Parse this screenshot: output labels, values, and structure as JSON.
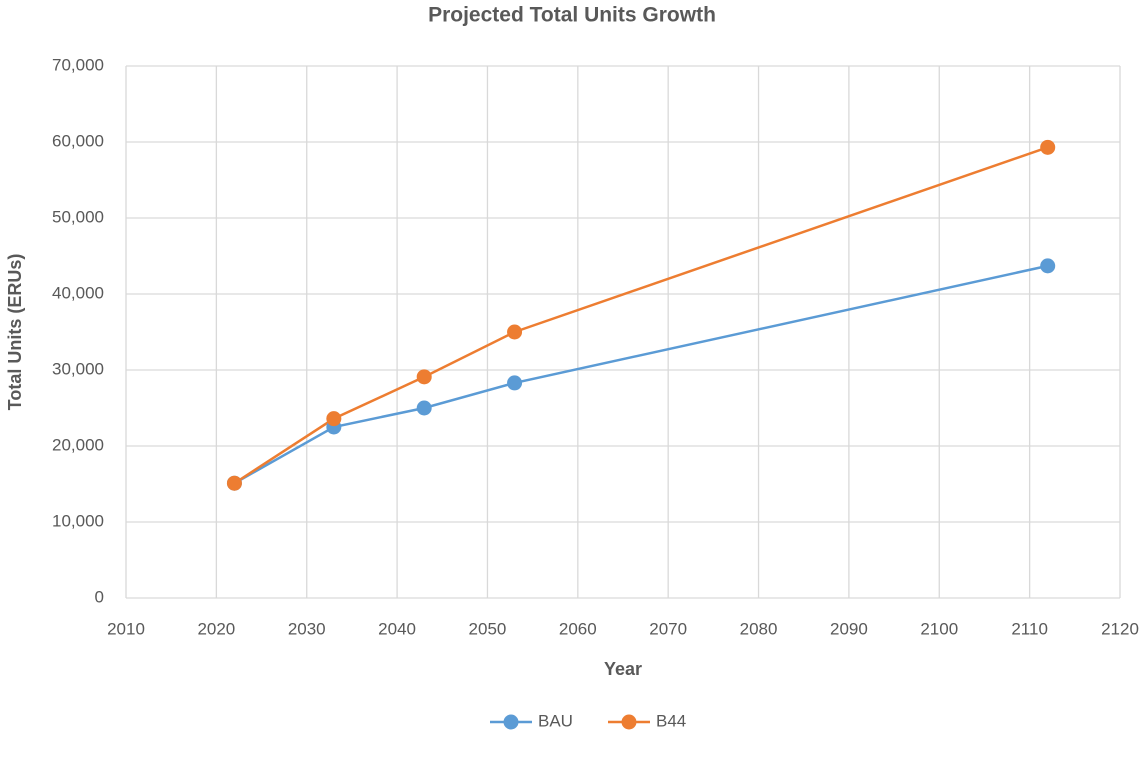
{
  "chart_data": {
    "type": "line",
    "title": "Projected Total Units Growth",
    "x_label": "Year",
    "y_label": "Total Units (ERUs)",
    "x": [
      2022,
      2033,
      2043,
      2053,
      2112
    ],
    "series": [
      {
        "name": "BAU",
        "color": "#5b9bd5",
        "values": [
          15100,
          22500,
          25000,
          28300,
          43700
        ]
      },
      {
        "name": "B44",
        "color": "#ed7d31",
        "values": [
          15100,
          23600,
          29100,
          35000,
          59300
        ]
      }
    ],
    "xlim": [
      2010,
      2120
    ],
    "xticks": [
      2010,
      2020,
      2030,
      2040,
      2050,
      2060,
      2070,
      2080,
      2090,
      2100,
      2110,
      2120
    ],
    "ylim": [
      0,
      70000
    ],
    "yticks": [
      0,
      {
        "value": 10000,
        "label": "10,000"
      },
      {
        "value": 20000,
        "label": "20,000"
      },
      {
        "value": 30000,
        "label": "30,000"
      },
      {
        "value": 40000,
        "label": "40,000"
      },
      {
        "value": 50000,
        "label": "50,000"
      },
      {
        "value": 60000,
        "label": "60,000"
      },
      {
        "value": 70000,
        "label": "70,000"
      }
    ],
    "grid": true,
    "legend": "bottom"
  }
}
